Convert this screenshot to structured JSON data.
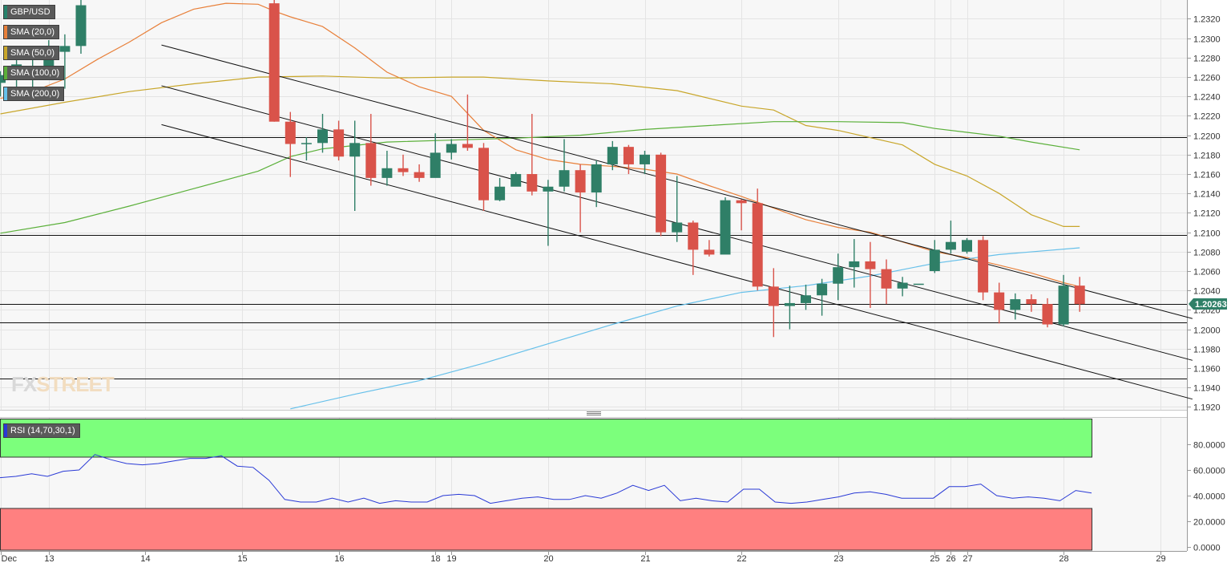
{
  "instrument": "GBP/USD",
  "indicators": [
    {
      "label": "SMA (20,0)",
      "color": "#e8803a"
    },
    {
      "label": "SMA (50,0)",
      "color": "#c8a62a"
    },
    {
      "label": "SMA (100,0)",
      "color": "#5bb03a"
    },
    {
      "label": "SMA (200,0)",
      "color": "#66c0ea"
    }
  ],
  "rsi_label": "RSI (14,70,30,1)",
  "current_price": "1.20263",
  "watermark": {
    "part1": "FX",
    "part2": "STREET"
  },
  "chart_data": {
    "type": "candlestick",
    "y_ticks": [
      "1.2320",
      "1.2300",
      "1.2280",
      "1.2260",
      "1.2240",
      "1.2220",
      "1.2200",
      "1.2180",
      "1.2160",
      "1.2140",
      "1.2120",
      "1.2100",
      "1.2080",
      "1.2060",
      "1.2040",
      "1.2020",
      "1.2000",
      "1.1980",
      "1.1960",
      "1.1940",
      "1.1920"
    ],
    "ylim": [
      1.1917,
      1.2327
    ],
    "x_ticks": [
      {
        "i": 0,
        "label": "Dec"
      },
      {
        "i": 3,
        "label": "13"
      },
      {
        "i": 9,
        "label": "14"
      },
      {
        "i": 15,
        "label": "15"
      },
      {
        "i": 21,
        "label": "16"
      },
      {
        "i": 27,
        "label": "18"
      },
      {
        "i": 28,
        "label": "19"
      },
      {
        "i": 34,
        "label": "20"
      },
      {
        "i": 40,
        "label": "21"
      },
      {
        "i": 46,
        "label": "22"
      },
      {
        "i": 52,
        "label": "23"
      },
      {
        "i": 58,
        "label": "25"
      },
      {
        "i": 59,
        "label": "26"
      },
      {
        "i": 60,
        "label": "27"
      },
      {
        "i": 66,
        "label": "28"
      },
      {
        "i": 72,
        "label": "29"
      }
    ],
    "candles": [
      [
        0,
        1.2254,
        1.2262,
        1.224,
        1.2266
      ],
      [
        1,
        1.2268,
        1.2273,
        1.2248,
        1.2278
      ],
      [
        2,
        1.2262,
        1.2268,
        1.2248,
        1.2282
      ],
      [
        3,
        1.2262,
        1.2286,
        1.2258,
        1.2298
      ],
      [
        4,
        1.2286,
        1.2292,
        1.2248,
        1.2304
      ],
      [
        5,
        1.2292,
        1.2334,
        1.2284,
        1.234
      ],
      [
        17,
        1.2336,
        1.2214,
        1.2214,
        1.2342
      ],
      [
        18,
        1.2214,
        1.2191,
        1.2157,
        1.2224
      ],
      [
        19,
        1.2191,
        1.2192,
        1.2174,
        1.2198
      ],
      [
        20,
        1.2192,
        1.2206,
        1.2182,
        1.2222
      ],
      [
        21,
        1.2206,
        1.2178,
        1.2174,
        1.2215
      ],
      [
        22,
        1.2178,
        1.2192,
        1.2122,
        1.2215
      ],
      [
        23,
        1.2192,
        1.2156,
        1.2148,
        1.2222
      ],
      [
        24,
        1.2156,
        1.2166,
        1.2148,
        1.2184
      ],
      [
        25,
        1.2166,
        1.2162,
        1.2158,
        1.218
      ],
      [
        26,
        1.2162,
        1.2156,
        1.2152,
        1.217
      ],
      [
        27,
        1.2156,
        1.2182,
        1.2158,
        1.2202
      ],
      [
        28,
        1.2182,
        1.2191,
        1.2175,
        1.2196
      ],
      [
        29,
        1.2191,
        1.2187,
        1.2184,
        1.2242
      ],
      [
        30,
        1.2187,
        1.2133,
        1.2122,
        1.2192
      ],
      [
        31,
        1.2133,
        1.2147,
        1.2132,
        1.2156
      ],
      [
        32,
        1.2147,
        1.216,
        1.215,
        1.2162
      ],
      [
        33,
        1.216,
        1.2142,
        1.2138,
        1.2222
      ],
      [
        34,
        1.2142,
        1.2147,
        1.2086,
        1.2154
      ],
      [
        35,
        1.2147,
        1.2164,
        1.2142,
        1.2196
      ],
      [
        36,
        1.2164,
        1.2141,
        1.21,
        1.217
      ],
      [
        37,
        1.2141,
        1.217,
        1.2126,
        1.2174
      ],
      [
        38,
        1.217,
        1.2188,
        1.2164,
        1.2194
      ],
      [
        39,
        1.2188,
        1.217,
        1.216,
        1.219
      ],
      [
        40,
        1.217,
        1.218,
        1.216,
        1.2184
      ],
      [
        41,
        1.218,
        1.21,
        1.2096,
        1.2182
      ],
      [
        42,
        1.21,
        1.211,
        1.209,
        1.2158
      ],
      [
        43,
        1.211,
        1.2082,
        1.2056,
        1.2112
      ],
      [
        44,
        1.2082,
        1.2077,
        1.2075,
        1.2092
      ],
      [
        45,
        1.2077,
        1.2133,
        1.2078,
        1.2136
      ],
      [
        46,
        1.2133,
        1.213,
        1.2102,
        1.2134
      ],
      [
        47,
        1.213,
        1.2044,
        1.204,
        1.2145
      ],
      [
        48,
        1.2044,
        1.2024,
        1.1992,
        1.2063
      ],
      [
        49,
        1.2024,
        1.2027,
        1.2,
        1.2045
      ],
      [
        50,
        1.2027,
        1.2035,
        1.202,
        1.2046
      ],
      [
        51,
        1.2035,
        1.2047,
        1.2014,
        1.2052
      ],
      [
        52,
        1.2047,
        1.2064,
        1.203,
        1.2078
      ],
      [
        53,
        1.2064,
        1.207,
        1.2043,
        1.2093
      ],
      [
        54,
        1.207,
        1.2062,
        1.2022,
        1.209
      ],
      [
        55,
        1.2062,
        1.2042,
        1.2026,
        1.2072
      ],
      [
        56,
        1.2042,
        1.2048,
        1.2034,
        1.2054
      ],
      [
        57,
        1.2047,
        1.2047,
        1.2047,
        1.2047
      ],
      [
        58,
        1.206,
        1.2082,
        1.2058,
        1.2092
      ],
      [
        59,
        1.2082,
        1.209,
        1.2078,
        1.2112
      ],
      [
        60,
        1.208,
        1.2092,
        1.2078,
        1.2094
      ],
      [
        61,
        1.2092,
        1.2038,
        1.203,
        1.2096
      ],
      [
        62,
        1.2038,
        1.202,
        1.2006,
        1.2048
      ],
      [
        63,
        1.202,
        1.2031,
        1.201,
        1.2037
      ],
      [
        64,
        1.2031,
        1.2026,
        1.2018,
        1.2036
      ],
      [
        65,
        1.2026,
        1.2005,
        1.2002,
        1.2032
      ],
      [
        66,
        1.2005,
        1.2045,
        1.2003,
        1.2056
      ],
      [
        67,
        1.2045,
        1.2026,
        1.2018,
        1.2054
      ]
    ],
    "horizontal_levels": [
      1.2198,
      1.2097,
      1.2026,
      1.2007,
      1.1949
    ],
    "trend_lines": [
      {
        "from": [
          10,
          1.2293
        ],
        "to": [
          74,
          1.2011
        ]
      },
      {
        "from": [
          10,
          1.2251
        ],
        "to": [
          74,
          1.1968
        ]
      },
      {
        "from": [
          10,
          1.2211
        ],
        "to": [
          74,
          1.1928
        ]
      }
    ],
    "series": [
      {
        "label": "SMA (20,0)",
        "color": "#e8803a",
        "points": [
          [
            0,
            1.2238
          ],
          [
            2,
            1.2245
          ],
          [
            4,
            1.2258
          ],
          [
            6,
            1.2278
          ],
          [
            8,
            1.2296
          ],
          [
            10,
            1.2316
          ],
          [
            12,
            1.233
          ],
          [
            14,
            1.2336
          ],
          [
            16,
            1.2335
          ],
          [
            17,
            1.2328
          ],
          [
            18,
            1.2322
          ],
          [
            20,
            1.2312
          ],
          [
            22,
            1.229
          ],
          [
            24,
            1.2265
          ],
          [
            26,
            1.225
          ],
          [
            28,
            1.224
          ],
          [
            30,
            1.2205
          ],
          [
            32,
            1.2185
          ],
          [
            34,
            1.2175
          ],
          [
            36,
            1.217
          ],
          [
            38,
            1.2168
          ],
          [
            40,
            1.2165
          ],
          [
            42,
            1.216
          ],
          [
            44,
            1.2148
          ],
          [
            46,
            1.2137
          ],
          [
            48,
            1.2125
          ],
          [
            50,
            1.2113
          ],
          [
            52,
            1.2105
          ],
          [
            54,
            1.21
          ],
          [
            56,
            1.209
          ],
          [
            58,
            1.208
          ],
          [
            60,
            1.2074
          ],
          [
            62,
            1.2066
          ],
          [
            64,
            1.2058
          ],
          [
            66,
            1.2048
          ],
          [
            67,
            1.2044
          ]
        ]
      },
      {
        "label": "SMA (50,0)",
        "color": "#c8a62a",
        "points": [
          [
            0,
            1.2222
          ],
          [
            4,
            1.2234
          ],
          [
            8,
            1.2245
          ],
          [
            12,
            1.2253
          ],
          [
            16,
            1.226
          ],
          [
            20,
            1.2261
          ],
          [
            24,
            1.2259
          ],
          [
            28,
            1.226
          ],
          [
            30,
            1.226
          ],
          [
            34,
            1.2256
          ],
          [
            38,
            1.2253
          ],
          [
            42,
            1.2246
          ],
          [
            46,
            1.223
          ],
          [
            48,
            1.2226
          ],
          [
            50,
            1.221
          ],
          [
            52,
            1.2205
          ],
          [
            56,
            1.219
          ],
          [
            58,
            1.217
          ],
          [
            60,
            1.2158
          ],
          [
            62,
            1.214
          ],
          [
            64,
            1.2118
          ],
          [
            66,
            1.2106
          ],
          [
            67,
            1.2106
          ]
        ]
      },
      {
        "label": "SMA (100,0)",
        "color": "#5bb03a",
        "points": [
          [
            0,
            1.2099
          ],
          [
            4,
            1.211
          ],
          [
            8,
            1.2127
          ],
          [
            12,
            1.2145
          ],
          [
            16,
            1.2163
          ],
          [
            18,
            1.2178
          ],
          [
            20,
            1.2186
          ],
          [
            24,
            1.2193
          ],
          [
            28,
            1.2195
          ],
          [
            32,
            1.2197
          ],
          [
            36,
            1.22
          ],
          [
            40,
            1.2206
          ],
          [
            44,
            1.221
          ],
          [
            48,
            1.2214
          ],
          [
            52,
            1.2214
          ],
          [
            56,
            1.2213
          ],
          [
            58,
            1.2207
          ],
          [
            60,
            1.2203
          ],
          [
            62,
            1.2199
          ],
          [
            64,
            1.2193
          ],
          [
            67,
            1.2185
          ]
        ]
      },
      {
        "label": "SMA (200,0)",
        "color": "#66c0ea",
        "points": [
          [
            18,
            1.1918
          ],
          [
            22,
            1.1933
          ],
          [
            26,
            1.1947
          ],
          [
            30,
            1.1965
          ],
          [
            34,
            1.1985
          ],
          [
            38,
            1.2005
          ],
          [
            42,
            1.2024
          ],
          [
            46,
            1.2038
          ],
          [
            50,
            1.2045
          ],
          [
            54,
            1.2055
          ],
          [
            58,
            1.2068
          ],
          [
            62,
            1.2077
          ],
          [
            67,
            1.2084
          ]
        ]
      }
    ],
    "rsi": {
      "y_ticks": [
        "80.0000",
        "60.0000",
        "40.0000",
        "20.0000",
        "0.0000"
      ],
      "ylim": [
        0,
        100
      ],
      "overbought": 70,
      "oversold": 30,
      "values": [
        54,
        55,
        57,
        55,
        59,
        60,
        72,
        68,
        65,
        64,
        65,
        67,
        69,
        69,
        71,
        63,
        62,
        52,
        37,
        35,
        35,
        38,
        35,
        38,
        34,
        36,
        35,
        35,
        40,
        41,
        40,
        34,
        36,
        38,
        39,
        37,
        37,
        40,
        38,
        42,
        48,
        44,
        48,
        36,
        38,
        36,
        35,
        45,
        45,
        35,
        34,
        35,
        37,
        39,
        42,
        43,
        41,
        38,
        38,
        38,
        47,
        47,
        49,
        40,
        38,
        39,
        38,
        36,
        44,
        42
      ]
    }
  }
}
